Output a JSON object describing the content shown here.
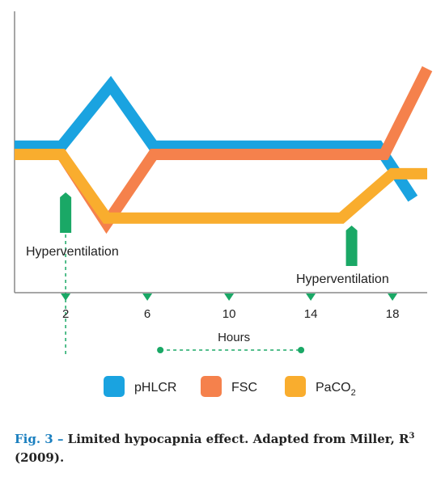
{
  "chart_data": {
    "type": "line",
    "xlabel": "Hours",
    "x_ticks": [
      "2",
      "6",
      "10",
      "14",
      "18"
    ],
    "xlim": [
      -0.5,
      19.7
    ],
    "ylim": [
      0,
      100
    ],
    "series": [
      {
        "name": "pHLCR",
        "color": "#1aa3e0",
        "x": [
          -0.5,
          1.8,
          4.2,
          6.3,
          17.3,
          19.0
        ],
        "y": [
          53,
          53,
          75,
          53,
          53,
          34
        ]
      },
      {
        "name": "FSC",
        "color": "#f5814c",
        "x": [
          -0.5,
          1.8,
          4.0,
          6.3,
          17.6,
          19.7
        ],
        "y": [
          50,
          50,
          25,
          50,
          50,
          81
        ]
      },
      {
        "name": "PaCO",
        "sub": "2",
        "color": "#f9ad2e",
        "x": [
          -0.5,
          1.8,
          4.0,
          15.5,
          18.0,
          19.7
        ],
        "y": [
          50,
          50,
          27,
          27,
          43,
          43
        ]
      }
    ],
    "annotations": [
      {
        "text": "Hyperventilation",
        "x": 2.0
      },
      {
        "text": "Hyperventilation",
        "x": 16.0
      }
    ]
  },
  "caption": {
    "label": "Fig. 3 –",
    "text": " Limited hypocapnia effect. Adapted from Miller, R",
    "superscript": "3",
    "year": " (2009)."
  },
  "colors": {
    "marker_green": "#1aa866",
    "axis": "#888888"
  }
}
